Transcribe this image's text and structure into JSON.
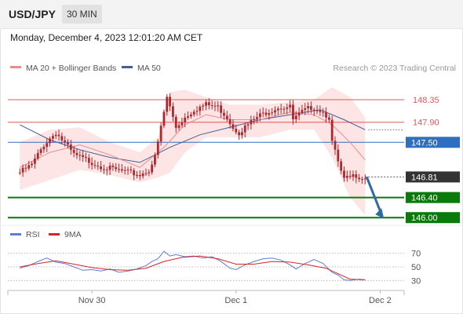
{
  "header": {
    "symbol": "USD/JPY",
    "timeframe": "30 MIN"
  },
  "datetime": "Monday, December 4, 2023 12:01:20 AM CET",
  "colors": {
    "bollinger_band": "#fde2e2",
    "ma20": "#f08a8a",
    "ma50": "#3f5f9a",
    "resistance": "#e05a5a",
    "pivot": "#2e6fbf",
    "support": "#0a7a0a",
    "candle": "#b0262d",
    "rsi": "#5b7fd6",
    "rsi_ma": "#d62525",
    "arrow": "#2e6aa6",
    "current_price": "#333333"
  },
  "chart_data": [
    {
      "type": "candlestick",
      "title": "USD/JPY",
      "legend": [
        {
          "name": "MA 20 + Bollinger Bands",
          "color": "#f08a8a"
        },
        {
          "name": "MA 50",
          "color": "#3f5f9a"
        }
      ],
      "legend_position": "top-left",
      "watermark": "Research © 2023 Trading Central",
      "ylim": [
        145.8,
        148.85
      ],
      "x_ticks": [
        {
          "label": "Nov 30",
          "x": 24
        },
        {
          "label": "Dec 1",
          "x": 72
        },
        {
          "label": "Dec 2",
          "x": 120
        }
      ],
      "xlim": [
        -4,
        128
      ],
      "levels": [
        {
          "label": "148.35",
          "value": 148.35,
          "kind": "resistance"
        },
        {
          "label": "147.90",
          "value": 147.9,
          "kind": "resistance"
        },
        {
          "label": "147.50",
          "value": 147.5,
          "kind": "pivot"
        },
        {
          "label": "146.81",
          "value": 146.81,
          "kind": "current"
        },
        {
          "label": "146.40",
          "value": 146.4,
          "kind": "support"
        },
        {
          "label": "146.00",
          "value": 146.0,
          "kind": "support"
        }
      ],
      "close_path": [
        [
          0,
          146.9
        ],
        [
          4,
          147.05
        ],
        [
          8,
          147.45
        ],
        [
          12,
          147.7
        ],
        [
          14,
          147.55
        ],
        [
          18,
          147.25
        ],
        [
          24,
          147.1
        ],
        [
          28,
          147.0
        ],
        [
          32,
          146.95
        ],
        [
          36,
          146.9
        ],
        [
          40,
          146.85
        ],
        [
          43,
          146.95
        ],
        [
          45,
          147.2
        ],
        [
          47,
          147.8
        ],
        [
          49,
          148.4
        ],
        [
          50,
          148.2
        ],
        [
          52,
          147.8
        ],
        [
          55,
          148.0
        ],
        [
          58,
          148.15
        ],
        [
          62,
          148.25
        ],
        [
          66,
          148.2
        ],
        [
          69,
          148.0
        ],
        [
          71,
          147.8
        ],
        [
          73,
          147.7
        ],
        [
          76,
          147.85
        ],
        [
          79,
          148.0
        ],
        [
          82,
          148.1
        ],
        [
          86,
          148.2
        ],
        [
          90,
          148.2
        ],
        [
          91,
          147.95
        ],
        [
          94,
          148.1
        ],
        [
          97,
          148.2
        ],
        [
          100,
          148.15
        ],
        [
          103,
          148.0
        ],
        [
          104,
          147.5
        ],
        [
          106,
          147.1
        ],
        [
          107,
          146.9
        ],
        [
          108,
          146.75
        ],
        [
          110,
          146.8
        ],
        [
          112,
          146.85
        ],
        [
          114,
          146.8
        ],
        [
          115,
          146.81
        ]
      ],
      "ma20_path": [
        [
          0,
          147.0
        ],
        [
          10,
          147.3
        ],
        [
          20,
          147.45
        ],
        [
          30,
          147.25
        ],
        [
          40,
          147.0
        ],
        [
          48,
          147.4
        ],
        [
          55,
          147.85
        ],
        [
          62,
          148.05
        ],
        [
          70,
          147.95
        ],
        [
          80,
          147.95
        ],
        [
          90,
          148.1
        ],
        [
          98,
          148.05
        ],
        [
          104,
          147.85
        ],
        [
          110,
          147.5
        ],
        [
          115,
          147.15
        ]
      ],
      "ma50_path": [
        [
          0,
          147.85
        ],
        [
          10,
          147.55
        ],
        [
          20,
          147.35
        ],
        [
          30,
          147.2
        ],
        [
          40,
          147.1
        ],
        [
          50,
          147.4
        ],
        [
          60,
          147.65
        ],
        [
          70,
          147.8
        ],
        [
          80,
          147.95
        ],
        [
          90,
          148.05
        ],
        [
          100,
          148.15
        ],
        [
          108,
          147.95
        ],
        [
          115,
          147.75
        ]
      ],
      "bb_upper_path": [
        [
          0,
          147.5
        ],
        [
          10,
          147.75
        ],
        [
          20,
          147.8
        ],
        [
          30,
          147.5
        ],
        [
          40,
          147.3
        ],
        [
          46,
          147.6
        ],
        [
          50,
          148.5
        ],
        [
          55,
          148.55
        ],
        [
          62,
          148.4
        ],
        [
          70,
          148.25
        ],
        [
          80,
          148.25
        ],
        [
          90,
          148.3
        ],
        [
          98,
          148.35
        ],
        [
          104,
          148.6
        ],
        [
          110,
          148.4
        ],
        [
          115,
          148.0
        ]
      ],
      "bb_lower_path": [
        [
          0,
          146.55
        ],
        [
          10,
          146.75
        ],
        [
          20,
          146.95
        ],
        [
          30,
          146.85
        ],
        [
          40,
          146.7
        ],
        [
          46,
          146.8
        ],
        [
          50,
          146.9
        ],
        [
          55,
          147.3
        ],
        [
          62,
          147.6
        ],
        [
          70,
          147.6
        ],
        [
          80,
          147.6
        ],
        [
          90,
          147.75
        ],
        [
          98,
          147.75
        ],
        [
          104,
          147.2
        ],
        [
          110,
          146.4
        ],
        [
          115,
          146.05
        ]
      ],
      "forecast_arrow": {
        "from": [
          115,
          146.81
        ],
        "to": [
          121,
          146.0
        ]
      }
    },
    {
      "type": "line",
      "title": "RSI",
      "legend": [
        {
          "name": "RSI",
          "color": "#5b7fd6"
        },
        {
          "name": "9MA",
          "color": "#d62525"
        }
      ],
      "ylim": [
        20,
        80
      ],
      "y_ticks": [
        {
          "label": "70",
          "value": 70
        },
        {
          "label": "50",
          "value": 50
        },
        {
          "label": "30",
          "value": 30
        }
      ],
      "series": [
        {
          "name": "RSI",
          "points": [
            [
              0,
              48
            ],
            [
              3,
              52
            ],
            [
              6,
              58
            ],
            [
              9,
              63
            ],
            [
              12,
              57
            ],
            [
              15,
              55
            ],
            [
              18,
              50
            ],
            [
              21,
              45
            ],
            [
              24,
              46
            ],
            [
              27,
              44
            ],
            [
              30,
              47
            ],
            [
              33,
              42
            ],
            [
              36,
              44
            ],
            [
              39,
              47
            ],
            [
              42,
              52
            ],
            [
              44,
              58
            ],
            [
              46,
              62
            ],
            [
              48,
              73
            ],
            [
              50,
              66
            ],
            [
              52,
              68
            ],
            [
              55,
              65
            ],
            [
              58,
              66
            ],
            [
              61,
              63
            ],
            [
              64,
              65
            ],
            [
              67,
              58
            ],
            [
              70,
              48
            ],
            [
              72,
              46
            ],
            [
              75,
              53
            ],
            [
              78,
              58
            ],
            [
              81,
              62
            ],
            [
              84,
              63
            ],
            [
              87,
              60
            ],
            [
              90,
              53
            ],
            [
              92,
              47
            ],
            [
              95,
              55
            ],
            [
              98,
              61
            ],
            [
              101,
              55
            ],
            [
              104,
              42
            ],
            [
              106,
              38
            ],
            [
              108,
              31
            ],
            [
              110,
              30
            ],
            [
              113,
              32
            ],
            [
              115,
              31
            ]
          ]
        },
        {
          "name": "9MA",
          "points": [
            [
              0,
              50
            ],
            [
              6,
              55
            ],
            [
              12,
              59
            ],
            [
              18,
              54
            ],
            [
              24,
              49
            ],
            [
              30,
              46
            ],
            [
              36,
              45
            ],
            [
              42,
              48
            ],
            [
              48,
              58
            ],
            [
              54,
              64
            ],
            [
              60,
              66
            ],
            [
              66,
              62
            ],
            [
              72,
              54
            ],
            [
              78,
              54
            ],
            [
              84,
              58
            ],
            [
              90,
              57
            ],
            [
              96,
              53
            ],
            [
              102,
              48
            ],
            [
              106,
              40
            ],
            [
              110,
              32
            ],
            [
              115,
              31
            ]
          ]
        }
      ]
    }
  ]
}
